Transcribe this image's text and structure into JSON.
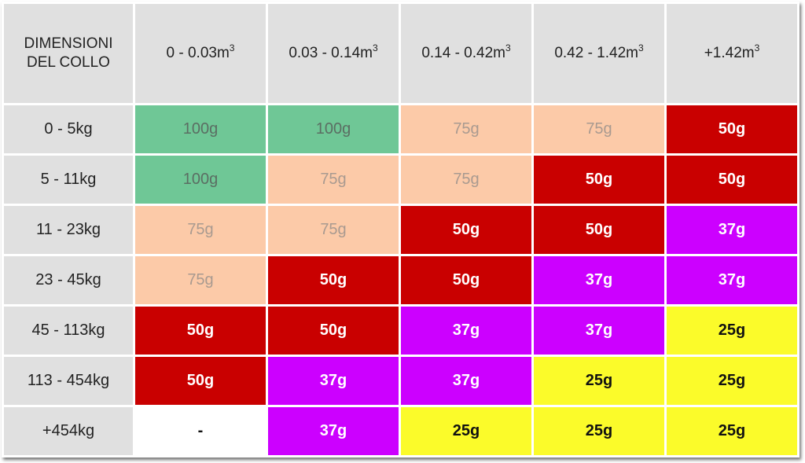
{
  "table": {
    "corner_label_line1": "DIMENSIONI",
    "corner_label_line2": "DEL COLLO",
    "columns": [
      {
        "text": "0 - 0.03m",
        "sup": "3"
      },
      {
        "text": "0.03 - 0.14m",
        "sup": "3"
      },
      {
        "text": "0.14 - 0.42m",
        "sup": "3"
      },
      {
        "text": "0.42 - 1.42m",
        "sup": "3"
      },
      {
        "text": "+1.42m",
        "sup": "3"
      }
    ],
    "rows": [
      {
        "label": "0 - 5kg",
        "cells": [
          "100g",
          "100g",
          "75g",
          "75g",
          "50g"
        ],
        "colors": [
          "green",
          "green",
          "peach",
          "peach",
          "red"
        ]
      },
      {
        "label": "5 - 11kg",
        "cells": [
          "100g",
          "75g",
          "75g",
          "50g",
          "50g"
        ],
        "colors": [
          "green",
          "peach",
          "peach",
          "red",
          "red"
        ]
      },
      {
        "label": "11 - 23kg",
        "cells": [
          "75g",
          "75g",
          "50g",
          "50g",
          "37g"
        ],
        "colors": [
          "peach",
          "peach",
          "red",
          "red",
          "purple"
        ]
      },
      {
        "label": "23 - 45kg",
        "cells": [
          "75g",
          "50g",
          "50g",
          "37g",
          "37g"
        ],
        "colors": [
          "peach",
          "red",
          "red",
          "purple",
          "purple"
        ]
      },
      {
        "label": "45 - 113kg",
        "cells": [
          "50g",
          "50g",
          "37g",
          "37g",
          "25g"
        ],
        "colors": [
          "red",
          "red",
          "purple",
          "purple",
          "yellow"
        ]
      },
      {
        "label": "113 - 454kg",
        "cells": [
          "50g",
          "37g",
          "37g",
          "25g",
          "25g"
        ],
        "colors": [
          "red",
          "purple",
          "purple",
          "yellow",
          "yellow"
        ]
      },
      {
        "label": "+454kg",
        "cells": [
          "-",
          "37g",
          "25g",
          "25g",
          "25g"
        ],
        "colors": [
          "white",
          "purple",
          "yellow",
          "yellow",
          "yellow"
        ]
      }
    ]
  },
  "palette": {
    "header_bg": "#e0e0e0",
    "green": "#6fc796",
    "peach": "#fccaa8",
    "red": "#c90000",
    "purple": "#cc00ff",
    "yellow": "#fbfb2a",
    "white": "#ffffff"
  }
}
